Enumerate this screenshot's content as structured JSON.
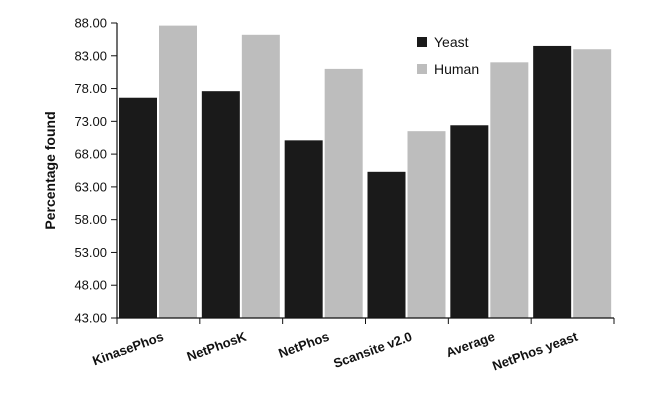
{
  "chart_data": {
    "type": "bar",
    "title": "",
    "xlabel": "",
    "ylabel": "Percentage found",
    "ylim": [
      43.0,
      88.0
    ],
    "ytick_step": 5,
    "ytick_labels": [
      "43.00",
      "48.00",
      "53.00",
      "58.00",
      "63.00",
      "68.00",
      "73.00",
      "78.00",
      "83.00",
      "88.00"
    ],
    "categories": [
      "KinasePhos",
      "NetPhosK",
      "NetPhos",
      "Scansite v2.0",
      "Average",
      "NetPhos yeast"
    ],
    "series": [
      {
        "name": "Yeast",
        "color": "#1a1a1a",
        "values": [
          76.6,
          77.6,
          70.1,
          65.3,
          72.4,
          84.5
        ]
      },
      {
        "name": "Human",
        "color": "#bdbdbd",
        "values": [
          87.6,
          86.2,
          81.0,
          71.5,
          82.0,
          84.0
        ]
      }
    ],
    "legend_position": "top-right",
    "grid": false
  }
}
